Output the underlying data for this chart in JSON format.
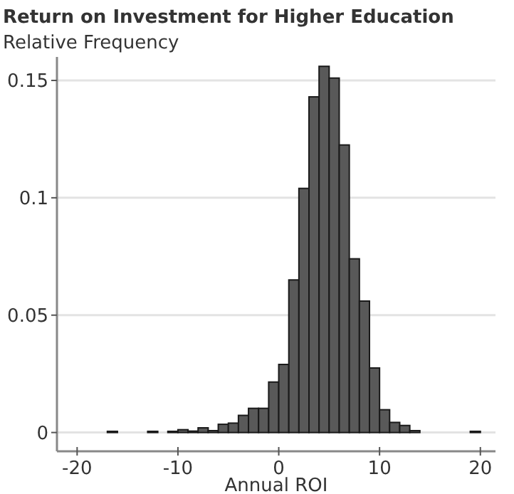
{
  "chart_data": {
    "type": "histogram",
    "title": "Return on Investment for Higher Education",
    "ylabel": "Relative Frequency",
    "xlabel": "Annual ROI",
    "bins": [
      -17,
      -16,
      -15,
      -14,
      -13,
      -12,
      -11,
      -10,
      -9,
      -8,
      -7,
      -6,
      -5,
      -4,
      -3,
      -2,
      -1,
      0,
      1,
      2,
      3,
      4,
      5,
      6,
      7,
      8,
      9,
      10,
      11,
      12,
      13,
      14,
      15,
      16,
      17,
      18,
      19,
      20
    ],
    "values": [
      0.0005,
      0,
      0,
      0,
      0.0005,
      0,
      0.0005,
      0.0012,
      0.0006,
      0.002,
      0.0008,
      0.0035,
      0.004,
      0.0073,
      0.0103,
      0.0103,
      0.0215,
      0.029,
      0.065,
      0.104,
      0.143,
      0.156,
      0.151,
      0.1225,
      0.074,
      0.056,
      0.0275,
      0.0097,
      0.0043,
      0.003,
      0.0008,
      0,
      0,
      0,
      0,
      0,
      0.0005
    ],
    "color": "#595959",
    "xlim": [
      -22,
      21.5
    ],
    "xticks": [
      -20,
      -10,
      0,
      10,
      20
    ],
    "ylim": [
      -0.008,
      0.16
    ],
    "yticks": [
      0,
      0.05,
      0.1,
      0.15
    ],
    "grid": "y"
  }
}
